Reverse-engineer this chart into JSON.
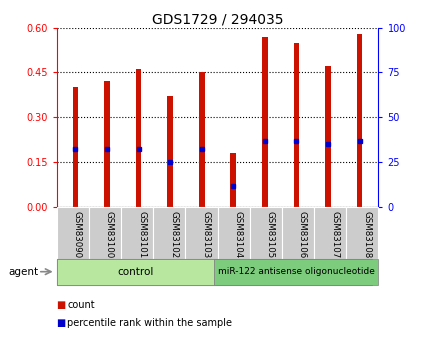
{
  "title": "GDS1729 / 294035",
  "categories": [
    "GSM83090",
    "GSM83100",
    "GSM83101",
    "GSM83102",
    "GSM83103",
    "GSM83104",
    "GSM83105",
    "GSM83106",
    "GSM83107",
    "GSM83108"
  ],
  "red_values": [
    0.4,
    0.42,
    0.46,
    0.37,
    0.45,
    0.18,
    0.57,
    0.55,
    0.47,
    0.58
  ],
  "blue_values": [
    0.195,
    0.195,
    0.195,
    0.15,
    0.195,
    0.07,
    0.22,
    0.22,
    0.21,
    0.22
  ],
  "ylim_left": [
    0,
    0.6
  ],
  "ylim_right": [
    0,
    100
  ],
  "yticks_left": [
    0,
    0.15,
    0.3,
    0.45,
    0.6
  ],
  "yticks_right": [
    0,
    25,
    50,
    75,
    100
  ],
  "bar_color": "#cc1100",
  "marker_color": "#0000cc",
  "control_label": "control",
  "treatment_label": "miR-122 antisense oligonucleotide",
  "agent_label": "agent",
  "legend_count": "count",
  "legend_pct": "percentile rank within the sample",
  "bar_width": 0.18,
  "control_bg": "#b8e8a0",
  "treatment_bg": "#7dcc7d",
  "title_fontsize": 10,
  "tick_fontsize": 7
}
